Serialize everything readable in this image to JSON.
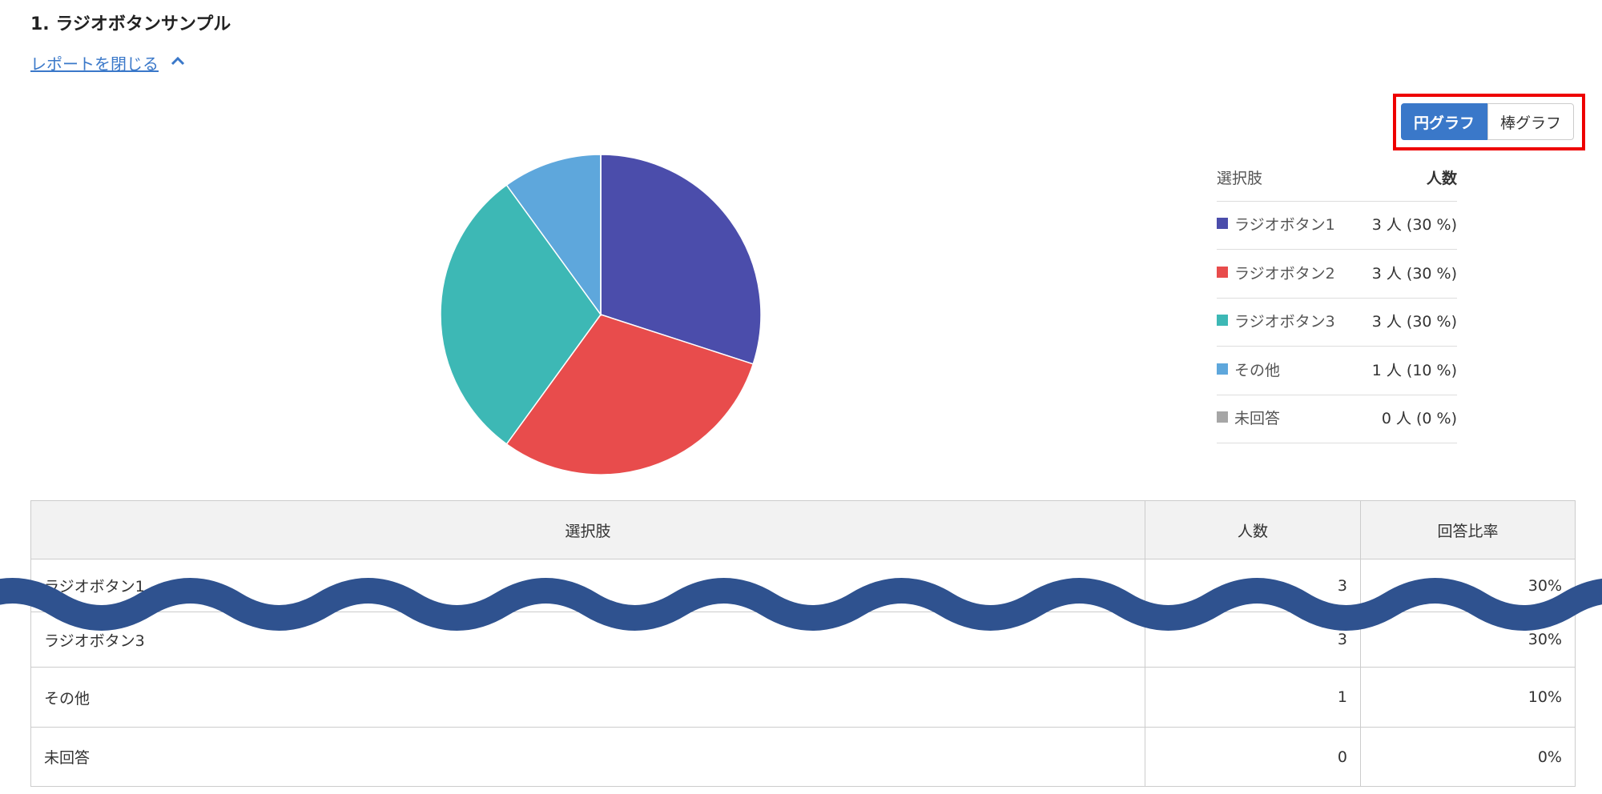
{
  "heading": "1. ラジオボタンサンプル",
  "toggle_link": "レポートを閉じる",
  "chart_buttons": [
    "円グラフ",
    "棒グラフ"
  ],
  "chart_data": {
    "type": "pie",
    "legend_header": [
      "選択肢",
      "人数"
    ],
    "categories": [
      "ラジオボタン1",
      "ラジオボタン2",
      "ラジオボタン3",
      "その他",
      "未回答"
    ],
    "values": [
      30,
      30,
      30,
      10,
      0
    ],
    "value_labels": [
      "3 人 (30 %)",
      "3 人 (30 %)",
      "3 人 (30 %)",
      "1 人 (10 %)",
      "0 人 (0 %)"
    ],
    "colors": [
      "#4b4dab",
      "#e84c4c",
      "#3db8b5",
      "#5ea7dc",
      "#a6a6a6"
    ]
  },
  "table": {
    "header": [
      "選択肢",
      "人数",
      "回答比率"
    ],
    "rows": [
      [
        "ラジオボタン1",
        3,
        "30%"
      ],
      [
        "ラジオボタン3",
        3,
        "30%"
      ],
      [
        "その他",
        1,
        "10%"
      ],
      [
        "未回答",
        0,
        "0%"
      ]
    ]
  }
}
